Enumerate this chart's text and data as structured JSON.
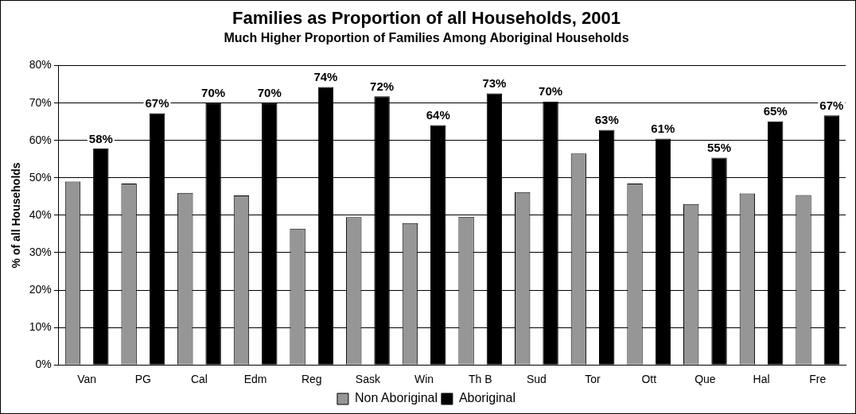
{
  "chart_data": {
    "type": "bar",
    "title": "Families as Proportion of all Households, 2001",
    "subtitle": "Much Higher Proportion of Families Among Aboriginal Households",
    "ylabel": "% of all Households",
    "categories": [
      "Van",
      "PG",
      "Cal",
      "Edm",
      "Reg",
      "Sask",
      "Win",
      "Th B",
      "Sud",
      "Tor",
      "Ott",
      "Que",
      "Hal",
      "Fre"
    ],
    "series": [
      {
        "name": "Non Aboriginal",
        "color": "#969696",
        "values": [
          49,
          48.5,
          46,
          45.3,
          36.4,
          39.5,
          37.9,
          39.6,
          46.2,
          56.5,
          48.5,
          43,
          45.8,
          45.4
        ]
      },
      {
        "name": "Aboriginal",
        "color": "#000000",
        "values": [
          57.8,
          67.3,
          70,
          70,
          74.3,
          71.8,
          64.1,
          72.6,
          70.4,
          62.8,
          60.5,
          55.4,
          65.1,
          66.7
        ],
        "value_labels": [
          "58%",
          "67%",
          "70%",
          "70%",
          "74%",
          "72%",
          "64%",
          "73%",
          "70%",
          "63%",
          "61%",
          "55%",
          "65%",
          "67%"
        ]
      }
    ],
    "ylim": [
      0,
      80
    ],
    "yticks": [
      {
        "value": 0,
        "label": "0%"
      },
      {
        "value": 10,
        "label": "10%"
      },
      {
        "value": 20,
        "label": "20%"
      },
      {
        "value": 30,
        "label": "30%"
      },
      {
        "value": 40,
        "label": "40%"
      },
      {
        "value": 50,
        "label": "50%"
      },
      {
        "value": 60,
        "label": "60%"
      },
      {
        "value": 70,
        "label": "70%"
      },
      {
        "value": 80,
        "label": "80%"
      }
    ],
    "grid": "y",
    "legend": "bottom"
  }
}
